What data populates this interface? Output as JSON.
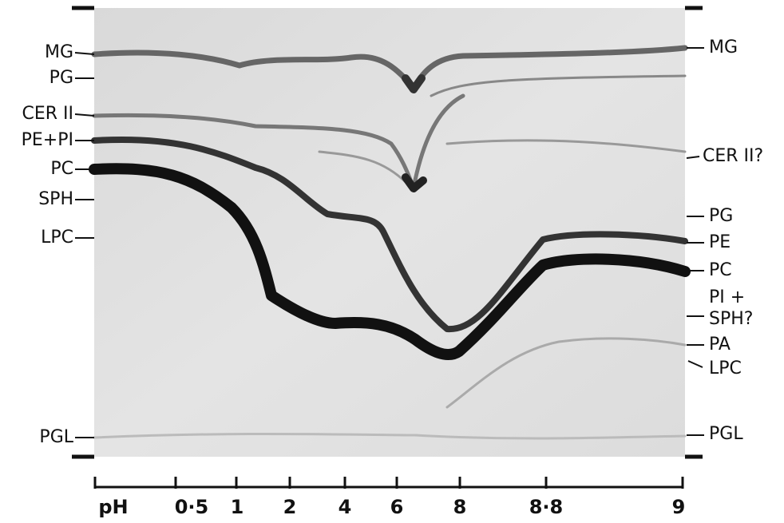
{
  "left_labels": [
    "MG",
    "PG",
    "CER II",
    "PE+PI",
    "PC",
    "SPH",
    "LPC",
    "PGL"
  ],
  "right_labels": [
    "MG",
    "CER II?",
    "PG",
    "PE",
    "PC",
    "PI +",
    "SPH?",
    "PA",
    "LPC",
    "PGL"
  ],
  "axis": {
    "title": "pH",
    "ticks": [
      "0·5",
      "1",
      "2",
      "4",
      "6",
      "8",
      "8·8",
      "9"
    ]
  }
}
